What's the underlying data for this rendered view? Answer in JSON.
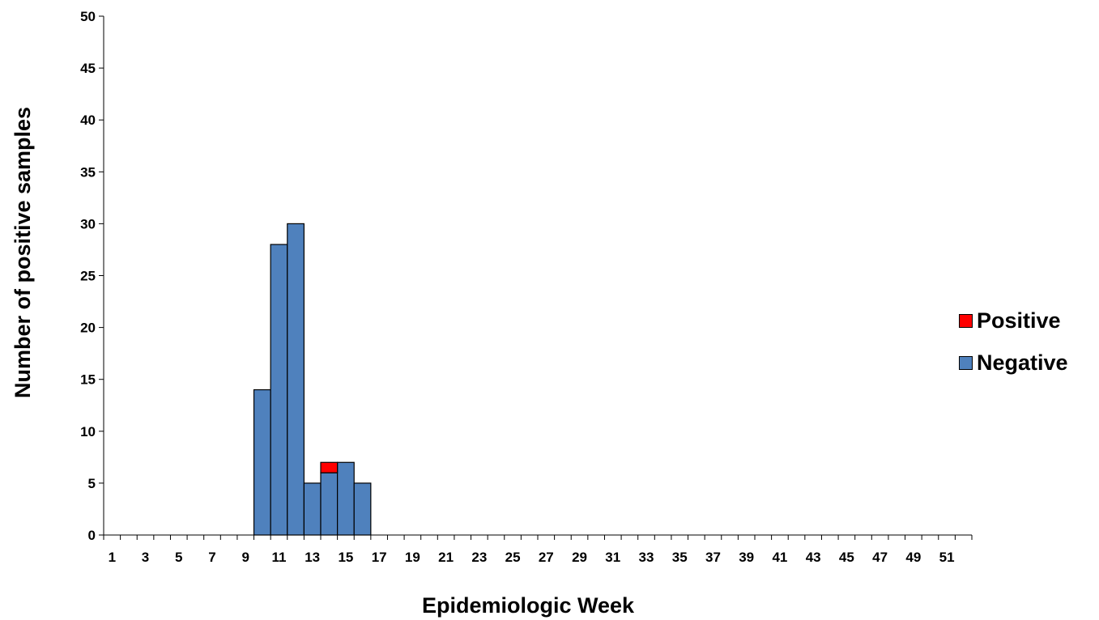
{
  "chart_data": {
    "type": "bar",
    "stacked": true,
    "x": [
      1,
      2,
      3,
      4,
      5,
      6,
      7,
      8,
      9,
      10,
      11,
      12,
      13,
      14,
      15,
      16,
      17,
      18,
      19,
      20,
      21,
      22,
      23,
      24,
      25,
      26,
      27,
      28,
      29,
      30,
      31,
      32,
      33,
      34,
      35,
      36,
      37,
      38,
      39,
      40,
      41,
      42,
      43,
      44,
      45,
      46,
      47,
      48,
      49,
      50,
      51,
      52
    ],
    "xtick_labels": [
      "1",
      "3",
      "5",
      "7",
      "9",
      "11",
      "13",
      "15",
      "17",
      "19",
      "21",
      "23",
      "25",
      "27",
      "29",
      "31",
      "33",
      "35",
      "37",
      "39",
      "41",
      "43",
      "45",
      "47",
      "49",
      "51"
    ],
    "ytick_labels": [
      "0",
      "5",
      "10",
      "15",
      "20",
      "25",
      "30",
      "35",
      "40",
      "45",
      "50"
    ],
    "series": [
      {
        "name": "Negative",
        "color": "#4F81BD",
        "values": [
          0,
          0,
          0,
          0,
          0,
          0,
          0,
          0,
          0,
          14,
          28,
          30,
          5,
          6,
          7,
          5,
          0,
          0,
          0,
          0,
          0,
          0,
          0,
          0,
          0,
          0,
          0,
          0,
          0,
          0,
          0,
          0,
          0,
          0,
          0,
          0,
          0,
          0,
          0,
          0,
          0,
          0,
          0,
          0,
          0,
          0,
          0,
          0,
          0,
          0,
          0,
          0
        ]
      },
      {
        "name": "Positive",
        "color": "#FF0000",
        "values": [
          0,
          0,
          0,
          0,
          0,
          0,
          0,
          0,
          0,
          0,
          0,
          0,
          0,
          1,
          0,
          0,
          0,
          0,
          0,
          0,
          0,
          0,
          0,
          0,
          0,
          0,
          0,
          0,
          0,
          0,
          0,
          0,
          0,
          0,
          0,
          0,
          0,
          0,
          0,
          0,
          0,
          0,
          0,
          0,
          0,
          0,
          0,
          0,
          0,
          0,
          0,
          0
        ]
      }
    ],
    "xlabel": "Epidemiologic Week",
    "ylabel": "Number of positive samples",
    "ylim": [
      0,
      50
    ],
    "grid": false,
    "legend_position": "right"
  },
  "legend": [
    {
      "label": "Positive",
      "color": "#FF0000"
    },
    {
      "label": "Negative",
      "color": "#4F81BD"
    }
  ]
}
